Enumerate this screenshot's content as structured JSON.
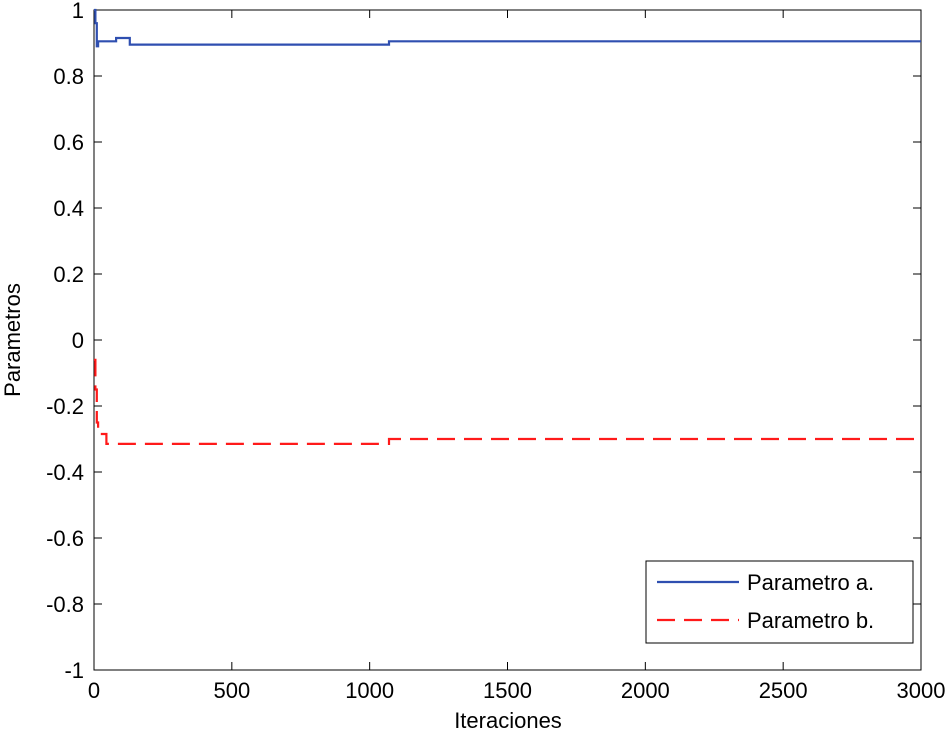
{
  "chart_data": {
    "type": "line",
    "title": "",
    "xlabel": "Iteraciones",
    "ylabel": "Parametros",
    "xlim": [
      0,
      3000
    ],
    "ylim": [
      -1,
      1
    ],
    "xticks": [
      0,
      500,
      1000,
      1500,
      2000,
      2500,
      3000
    ],
    "yticks": [
      1,
      0.8,
      0.6,
      0.4,
      0.2,
      0,
      -0.2,
      -0.4,
      -0.6,
      -0.8,
      -1
    ],
    "xtick_labels": [
      "0",
      "500",
      "1000",
      "1500",
      "2000",
      "2500",
      "3000"
    ],
    "ytick_labels": [
      "1",
      "0.8",
      "0.6",
      "0.4",
      "0.2",
      "0",
      "-0.2",
      "-0.4",
      "-0.6",
      "-0.8",
      "-1"
    ],
    "grid": false,
    "legend_position": "bottom-right",
    "series": [
      {
        "name": "Parametro a.",
        "color": "#2f4fb0",
        "style": "solid",
        "step": true,
        "x": [
          0,
          5,
          10,
          15,
          80,
          130,
          1070,
          3000
        ],
        "y": [
          1.0,
          0.96,
          0.89,
          0.905,
          0.915,
          0.895,
          0.905,
          0.905
        ]
      },
      {
        "name": "Parametro b.",
        "color": "#ff1a1a",
        "style": "dashed",
        "step": true,
        "x": [
          0,
          5,
          10,
          15,
          45,
          1070,
          3000
        ],
        "y": [
          -0.06,
          -0.15,
          -0.25,
          -0.285,
          -0.315,
          -0.3,
          -0.3
        ]
      }
    ]
  }
}
